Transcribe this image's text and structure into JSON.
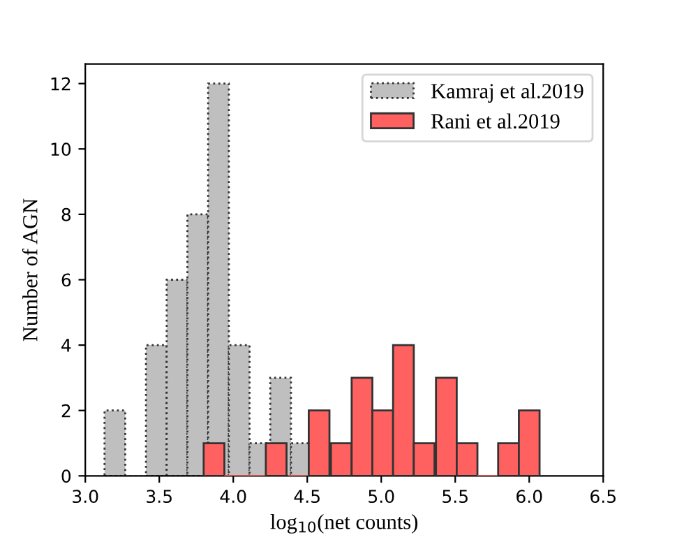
{
  "chart_data": {
    "type": "bar",
    "xlabel": "log$_{10}$(net counts)",
    "ylabel": "Number of AGN",
    "series": [
      {
        "name": "Kamraj et al.2019",
        "color": "#bfbfbf",
        "line_style": "dotted",
        "x": [
          3.2,
          3.34,
          3.48,
          3.62,
          3.76,
          3.9,
          4.04,
          4.18,
          4.32,
          4.46
        ],
        "values": [
          2,
          0,
          4,
          6,
          8,
          12,
          4,
          1,
          3,
          1
        ]
      },
      {
        "name": "Rani et al.2019",
        "color": "#ff6161",
        "line_style": "solid",
        "x": [
          3.87,
          4.01,
          4.15,
          4.29,
          4.44,
          4.58,
          4.73,
          4.87,
          5.01,
          5.15,
          5.29,
          5.44,
          5.58,
          5.72,
          5.86,
          6.0
        ],
        "values": [
          1,
          0,
          0,
          1,
          0,
          2,
          1,
          3,
          2,
          4,
          1,
          3,
          1,
          0,
          1,
          2
        ]
      }
    ],
    "xlim": [
      3.0,
      6.5
    ],
    "xticks": [
      {
        "value": 3.0,
        "label": "3.0"
      },
      {
        "value": 3.5,
        "label": "3.5"
      },
      {
        "value": 4.0,
        "label": "4.0"
      },
      {
        "value": 4.5,
        "label": "4.5"
      },
      {
        "value": 5.0,
        "label": "5.0"
      },
      {
        "value": 5.5,
        "label": "5.5"
      },
      {
        "value": 6.0,
        "label": "6.0"
      },
      {
        "value": 6.5,
        "label": "6.5"
      }
    ],
    "ylim": [
      0,
      12.6
    ],
    "yticks": [
      0,
      2,
      4,
      6,
      8,
      10,
      12
    ],
    "grid": false,
    "legend": "top right"
  }
}
